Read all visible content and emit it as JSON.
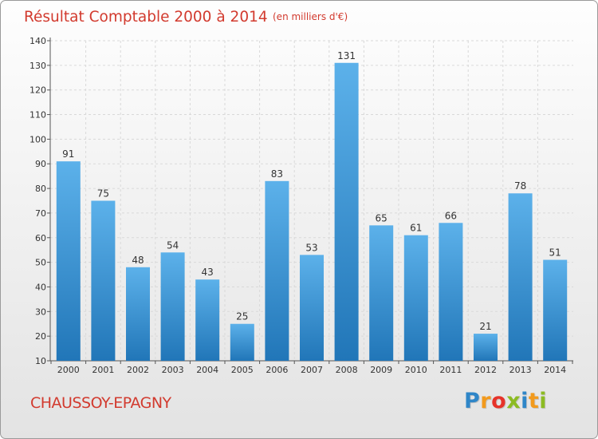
{
  "chart_data": {
    "type": "bar",
    "title": "Résultat Comptable 2000 à 2014",
    "unit": "(en milliers d'€)",
    "categories": [
      "2000",
      "2001",
      "2002",
      "2003",
      "2004",
      "2005",
      "2006",
      "2007",
      "2008",
      "2009",
      "2010",
      "2011",
      "2012",
      "2013",
      "2014"
    ],
    "values": [
      91,
      75,
      48,
      54,
      43,
      25,
      83,
      53,
      131,
      65,
      61,
      66,
      21,
      78,
      51
    ],
    "ylim": [
      10,
      140
    ],
    "yticks": [
      10,
      20,
      30,
      40,
      50,
      60,
      70,
      80,
      90,
      100,
      110,
      120,
      130,
      140
    ],
    "grid": true,
    "bar_color": "#3c97db"
  },
  "commune": "CHAUSSOY-EPAGNY",
  "brand": {
    "name": "Proxiti",
    "letters": [
      "P",
      "r",
      "o",
      "x",
      "i",
      "t",
      "i"
    ],
    "letter_colors": [
      "#2f86c8",
      "#f29a1d",
      "#e6332a",
      "#8cbb22",
      "#2f86c8",
      "#f29a1d",
      "#8cbb22"
    ]
  }
}
